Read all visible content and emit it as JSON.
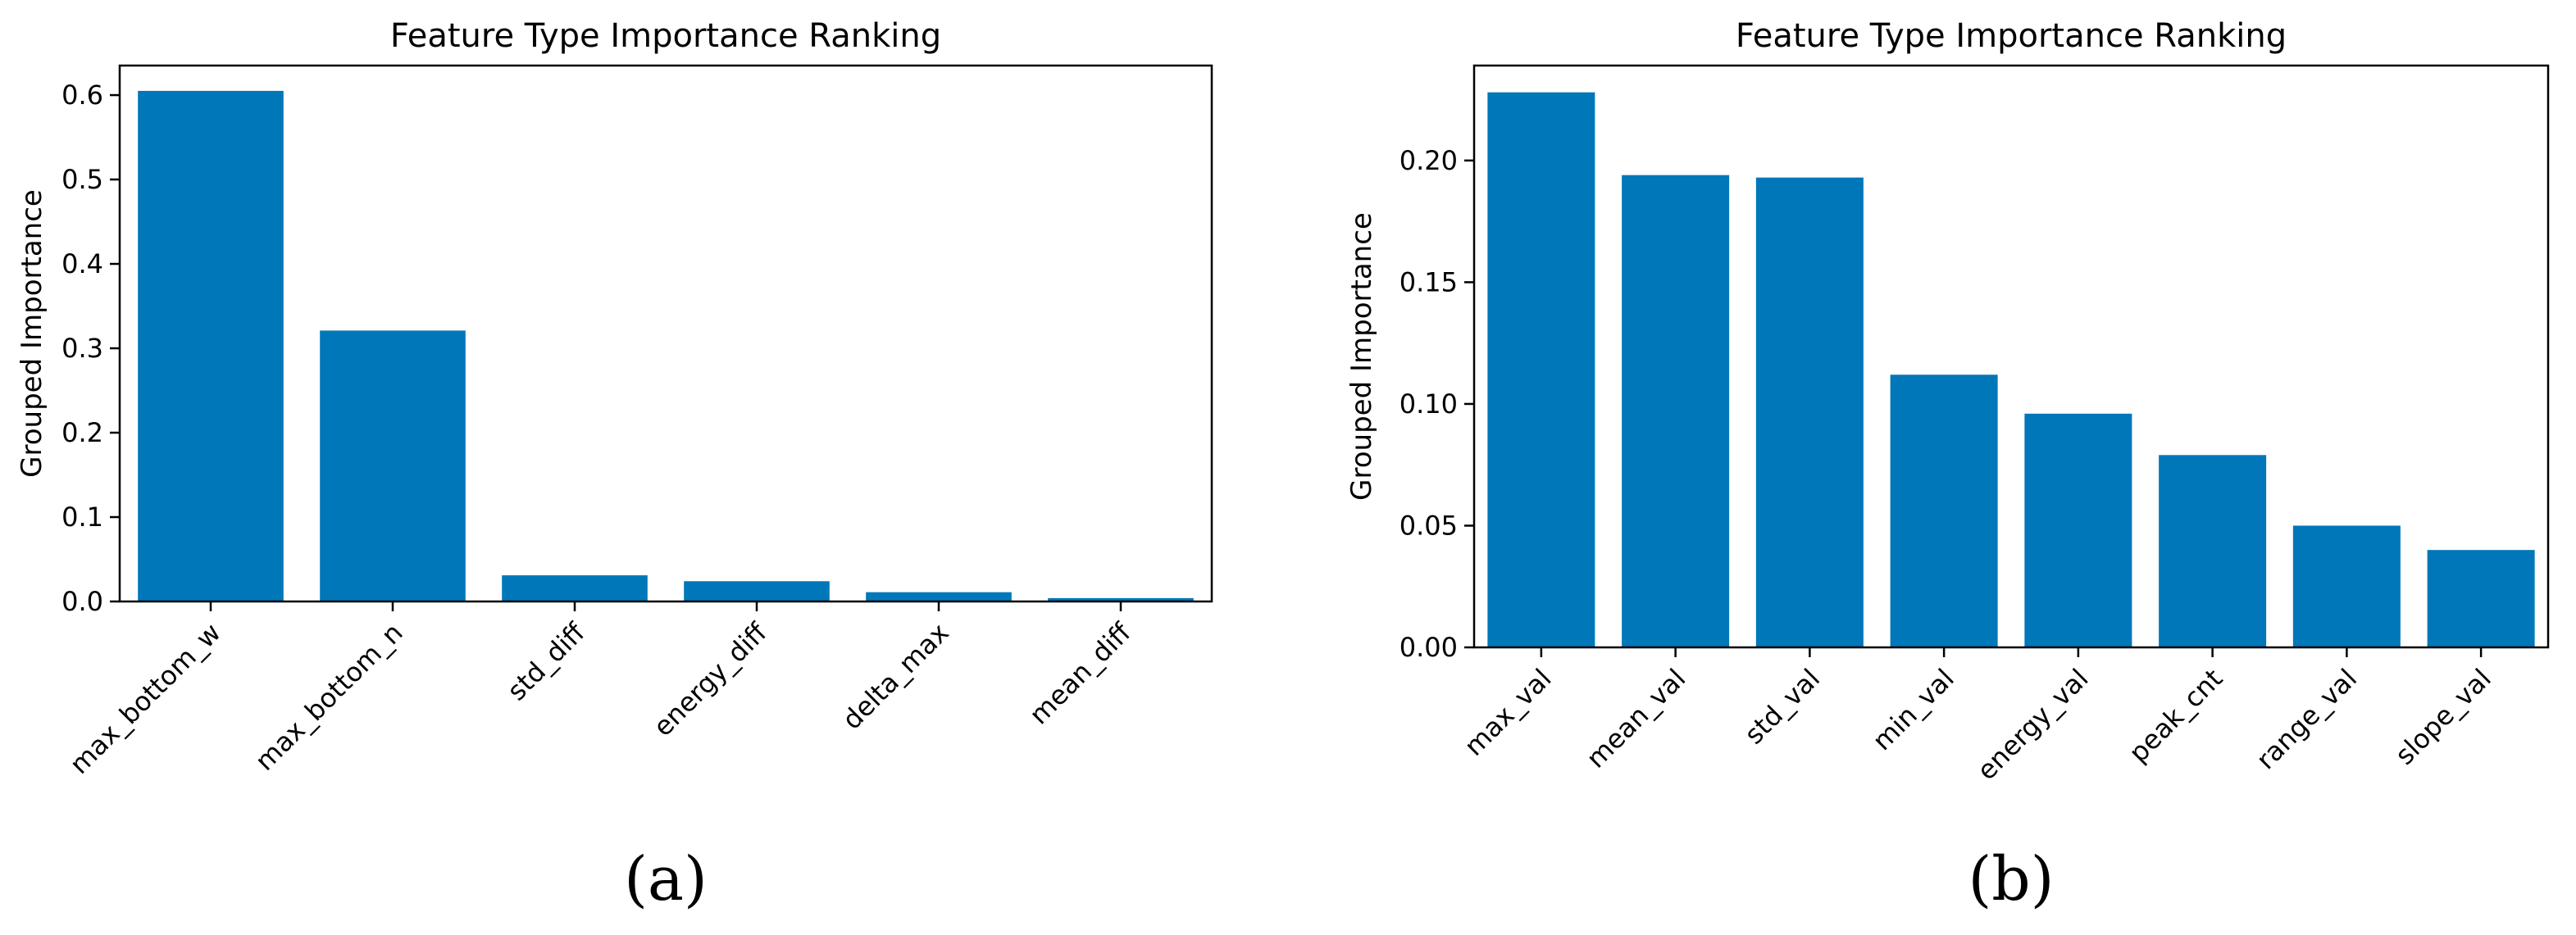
{
  "chart_data": [
    {
      "type": "bar",
      "panel_label": "(a)",
      "title": "Feature Type Importance Ranking",
      "xlabel": "",
      "ylabel": "Grouped Importance",
      "categories": [
        "max_bottom_w",
        "max_bottom_n",
        "std_diff",
        "energy_diff",
        "delta_max",
        "mean_diff"
      ],
      "values": [
        0.605,
        0.321,
        0.031,
        0.024,
        0.011,
        0.004
      ],
      "ylim": [
        0,
        0.635
      ],
      "yticks": [
        0.0,
        0.1,
        0.2,
        0.3,
        0.4,
        0.5,
        0.6
      ],
      "ytick_labels": [
        "0.0",
        "0.1",
        "0.2",
        "0.3",
        "0.4",
        "0.5",
        "0.6"
      ],
      "bar_color": "#0077b8",
      "grid": false
    },
    {
      "type": "bar",
      "panel_label": "(b)",
      "title": "Feature Type Importance Ranking",
      "xlabel": "",
      "ylabel": "Grouped Importance",
      "categories": [
        "max_val",
        "mean_val",
        "std_val",
        "min_val",
        "energy_val",
        "peak_cnt",
        "range_val",
        "slope_val"
      ],
      "values": [
        0.228,
        0.194,
        0.193,
        0.112,
        0.096,
        0.079,
        0.05,
        0.04
      ],
      "ylim": [
        0,
        0.239
      ],
      "yticks": [
        0.0,
        0.05,
        0.1,
        0.15,
        0.2
      ],
      "ytick_labels": [
        "0.00",
        "0.05",
        "0.10",
        "0.15",
        "0.20"
      ],
      "bar_color": "#0077b8",
      "grid": false
    }
  ]
}
